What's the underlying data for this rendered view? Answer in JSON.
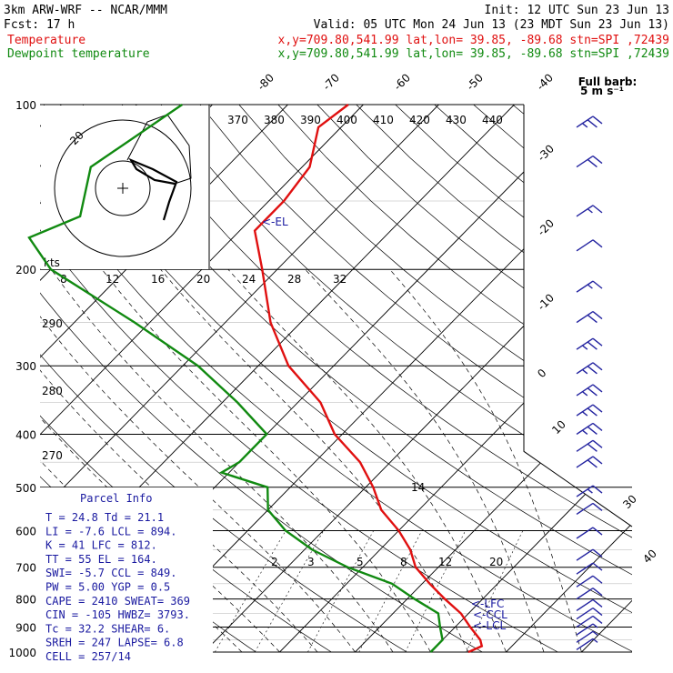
{
  "header": {
    "line1_left": "3km ARW-WRF -- NCAR/MMM",
    "line1_right": "Init: 12 UTC Sun 23 Jun 13",
    "line2_left": "Fcst:    17 h",
    "line2_right": "Valid: 05 UTC Mon 24 Jun 13 (23 MDT Sun 23 Jun 13)",
    "temp_label": "Temperature",
    "temp_info": "x,y=709.80,541.99   lat,lon= 39.85, -89.68  stn=SPI ,72439",
    "dew_label": "Dewpoint temperature",
    "dew_info": "x,y=709.80,541.99   lat,lon= 39.85, -89.68  stn=SPI ,72439"
  },
  "colors": {
    "temperature": "#e01010",
    "dewpoint": "#118a11",
    "wind": "#2323a0",
    "grid": "#000000"
  },
  "wind_key": {
    "line1": "Full barb:",
    "line2": "5 m s⁻¹"
  },
  "hodograph": {
    "units": "kts",
    "ring_label": "20"
  },
  "chart_data": {
    "type": "line",
    "pressure_levels": [
      100,
      200,
      300,
      400,
      500,
      600,
      700,
      800,
      900,
      1000
    ],
    "pressure_labels": [
      "100",
      "200",
      "300",
      "400",
      "500",
      "600",
      "700",
      "800",
      "900",
      "1000"
    ],
    "isotherm_labels_top": [
      "-80",
      "-70",
      "-60",
      "-50",
      "-40"
    ],
    "isotherm_labels_right": [
      "-30",
      "-20",
      "-10",
      "0",
      "10",
      "30",
      "40"
    ],
    "theta_labels": [
      "370",
      "380",
      "390",
      "400",
      "410",
      "420",
      "430",
      "440"
    ],
    "theta_left_labels": [
      "290",
      "280",
      "270"
    ],
    "mixing_ratio_labels": [
      "2",
      "3",
      "5",
      "8",
      "12",
      "20"
    ],
    "isotherm_mid_label": "14",
    "thetae_labels": [
      "8",
      "12",
      "16",
      "20",
      "24",
      "28",
      "32"
    ],
    "el_marker": "EL",
    "lfc_marker": "LFC",
    "ccl_marker": "CCL",
    "lcl_marker": "LCL",
    "series": [
      {
        "name": "Temperature",
        "color": "#e01010",
        "points": [
          [
            100,
            -62
          ],
          [
            110,
            -63
          ],
          [
            130,
            -59
          ],
          [
            150,
            -58
          ],
          [
            170,
            -58
          ],
          [
            200,
            -52
          ],
          [
            250,
            -44
          ],
          [
            300,
            -36
          ],
          [
            350,
            -27
          ],
          [
            400,
            -21
          ],
          [
            450,
            -14
          ],
          [
            500,
            -9
          ],
          [
            550,
            -5
          ],
          [
            600,
            0
          ],
          [
            650,
            4
          ],
          [
            700,
            7
          ],
          [
            750,
            11
          ],
          [
            800,
            15
          ],
          [
            850,
            19
          ],
          [
            900,
            22
          ],
          [
            950,
            25
          ],
          [
            975,
            26
          ],
          [
            1000,
            25
          ]
        ]
      },
      {
        "name": "Dewpoint temperature",
        "color": "#118a11",
        "points": [
          [
            100,
            -84
          ],
          [
            130,
            -88
          ],
          [
            160,
            -83
          ],
          [
            175,
            -87
          ],
          [
            200,
            -80
          ],
          [
            250,
            -62
          ],
          [
            300,
            -48
          ],
          [
            350,
            -38
          ],
          [
            400,
            -30
          ],
          [
            450,
            -30
          ],
          [
            470,
            -31
          ],
          [
            500,
            -23
          ],
          [
            550,
            -20
          ],
          [
            600,
            -15
          ],
          [
            650,
            -9
          ],
          [
            700,
            -2
          ],
          [
            750,
            6
          ],
          [
            800,
            11
          ],
          [
            850,
            16
          ],
          [
            900,
            18
          ],
          [
            950,
            20
          ],
          [
            1000,
            20
          ]
        ]
      }
    ],
    "wind_barbs": [
      {
        "p": 110,
        "s": 25
      },
      {
        "p": 130,
        "s": 18
      },
      {
        "p": 160,
        "s": 15
      },
      {
        "p": 185,
        "s": 10
      },
      {
        "p": 220,
        "s": 14
      },
      {
        "p": 250,
        "s": 20
      },
      {
        "p": 280,
        "s": 24
      },
      {
        "p": 310,
        "s": 25
      },
      {
        "p": 340,
        "s": 26
      },
      {
        "p": 370,
        "s": 25
      },
      {
        "p": 400,
        "s": 24
      },
      {
        "p": 430,
        "s": 22
      },
      {
        "p": 460,
        "s": 20
      },
      {
        "p": 520,
        "s": 15
      },
      {
        "p": 560,
        "s": 12
      },
      {
        "p": 620,
        "s": 10
      },
      {
        "p": 680,
        "s": 12
      },
      {
        "p": 720,
        "s": 12
      },
      {
        "p": 760,
        "s": 12
      },
      {
        "p": 800,
        "s": 12
      },
      {
        "p": 840,
        "s": 12
      },
      {
        "p": 870,
        "s": 10
      },
      {
        "p": 900,
        "s": 8
      },
      {
        "p": 930,
        "s": 6
      },
      {
        "p": 960,
        "s": 6
      },
      {
        "p": 990,
        "s": 5
      }
    ]
  },
  "parcel_info": {
    "title": "Parcel Info",
    "rows": [
      "T  =   24.8  Td =  21.1",
      "LI =   -7.6  LCL =  894.",
      "K  =     41  LFC =  812.",
      "TT =     55  EL  =  164.",
      "SWI=   -5.7  CCL =  849.",
      "PW =   5.00  YGP =   0.5",
      "CAPE = 2410  SWEAT=  369",
      "CIN  = -105  HWBZ= 3793.",
      "Tc  =  32.2  SHEAR=   6.",
      "SREH =  247  LAPSE=  6.8",
      "CELL = 257/14"
    ]
  }
}
